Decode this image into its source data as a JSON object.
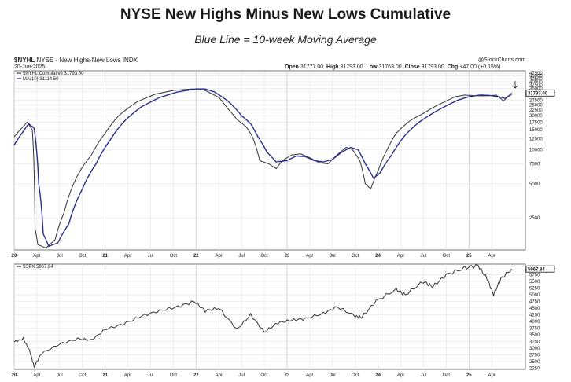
{
  "title": "NYSE New Highs Minus New Lows Cumulative",
  "subtitle": "Blue Line = 10-week Moving Average",
  "header": {
    "symbol": "$NYHL",
    "description": "NYSE - New Highs-New Lows INDX",
    "date": "20-Jun-2025",
    "watermark": "@StockCharts.com",
    "ohlc": [
      {
        "label": "Open",
        "value": "31777.00"
      },
      {
        "label": "High",
        "value": "31793.00"
      },
      {
        "label": "Low",
        "value": "31763.00"
      },
      {
        "label": "Close",
        "value": "31793.00"
      },
      {
        "label": "Chg",
        "value": "+47.00 (+0.15%)"
      }
    ]
  },
  "colors": {
    "price": "#333333",
    "ma": "#2a2f8c",
    "grid": "#e3e3e3",
    "arrow": "#1a1a1a"
  },
  "chart_data": [
    {
      "type": "line",
      "panel": "upper",
      "legend": {
        "placement": "top-left"
      },
      "series": [
        {
          "name": "$NYHL Cumulative 31793.00",
          "color": "#333333",
          "values": [
            [
              2020.0,
              13000
            ],
            [
              2020.1,
              16000
            ],
            [
              2020.14,
              17500
            ],
            [
              2020.2,
              15000
            ],
            [
              2020.23,
              2000
            ],
            [
              2020.26,
              1450
            ],
            [
              2020.35,
              1350
            ],
            [
              2020.45,
              1600
            ],
            [
              2020.55,
              2800
            ],
            [
              2020.7,
              6000
            ],
            [
              2020.85,
              9000
            ],
            [
              2021.0,
              14000
            ],
            [
              2021.15,
              20000
            ],
            [
              2021.35,
              26500
            ],
            [
              2021.55,
              31000
            ],
            [
              2021.75,
              33500
            ],
            [
              2021.95,
              34500
            ],
            [
              2022.02,
              34500
            ],
            [
              2022.1,
              33500
            ],
            [
              2022.25,
              29000
            ],
            [
              2022.35,
              23000
            ],
            [
              2022.45,
              18500
            ],
            [
              2022.55,
              16000
            ],
            [
              2022.62,
              13000
            ],
            [
              2022.7,
              8000
            ],
            [
              2022.8,
              7500
            ],
            [
              2022.88,
              6800
            ],
            [
              2022.95,
              8000
            ],
            [
              2023.05,
              9000
            ],
            [
              2023.15,
              9200
            ],
            [
              2023.25,
              8500
            ],
            [
              2023.35,
              7700
            ],
            [
              2023.45,
              7500
            ],
            [
              2023.55,
              9000
            ],
            [
              2023.65,
              10500
            ],
            [
              2023.72,
              10000
            ],
            [
              2023.8,
              8000
            ],
            [
              2023.86,
              5000
            ],
            [
              2023.92,
              4500
            ],
            [
              2024.0,
              6500
            ],
            [
              2024.1,
              10000
            ],
            [
              2024.2,
              14000
            ],
            [
              2024.35,
              18000
            ],
            [
              2024.5,
              21000
            ],
            [
              2024.62,
              24000
            ],
            [
              2024.75,
              27000
            ],
            [
              2024.85,
              29500
            ],
            [
              2024.95,
              30500
            ],
            [
              2025.1,
              30000
            ],
            [
              2025.2,
              30000
            ],
            [
              2025.3,
              30500
            ],
            [
              2025.38,
              27000
            ],
            [
              2025.47,
              31793
            ]
          ]
        },
        {
          "name": "MA(10) 31114.50",
          "color": "#2a2f8c",
          "values": [
            [
              2020.0,
              11000
            ],
            [
              2020.1,
              14500
            ],
            [
              2020.16,
              17000
            ],
            [
              2020.22,
              15500
            ],
            [
              2020.27,
              5000
            ],
            [
              2020.32,
              1800
            ],
            [
              2020.38,
              1400
            ],
            [
              2020.48,
              1500
            ],
            [
              2020.6,
              2200
            ],
            [
              2020.75,
              4500
            ],
            [
              2020.9,
              7500
            ],
            [
              2021.05,
              12000
            ],
            [
              2021.2,
              17500
            ],
            [
              2021.4,
              24000
            ],
            [
              2021.6,
              29000
            ],
            [
              2021.8,
              32500
            ],
            [
              2022.0,
              34500
            ],
            [
              2022.1,
              34500
            ],
            [
              2022.2,
              32500
            ],
            [
              2022.35,
              27000
            ],
            [
              2022.5,
              20000
            ],
            [
              2022.6,
              17000
            ],
            [
              2022.68,
              13000
            ],
            [
              2022.78,
              9500
            ],
            [
              2022.88,
              7800
            ],
            [
              2023.0,
              8000
            ],
            [
              2023.1,
              8800
            ],
            [
              2023.2,
              8700
            ],
            [
              2023.3,
              8000
            ],
            [
              2023.4,
              7800
            ],
            [
              2023.5,
              8200
            ],
            [
              2023.6,
              9500
            ],
            [
              2023.7,
              10500
            ],
            [
              2023.78,
              10000
            ],
            [
              2023.86,
              7500
            ],
            [
              2023.95,
              5600
            ],
            [
              2024.02,
              6200
            ],
            [
              2024.15,
              9000
            ],
            [
              2024.3,
              13500
            ],
            [
              2024.45,
              17500
            ],
            [
              2024.6,
              21000
            ],
            [
              2024.75,
              24500
            ],
            [
              2024.88,
              27500
            ],
            [
              2025.0,
              29500
            ],
            [
              2025.12,
              30500
            ],
            [
              2025.22,
              30300
            ],
            [
              2025.32,
              29500
            ],
            [
              2025.4,
              28500
            ],
            [
              2025.47,
              31114.5
            ]
          ]
        }
      ],
      "y_ticks": [
        2500,
        5000,
        7500,
        10000,
        12500,
        15000,
        17500,
        20000,
        22500,
        25000,
        27500,
        32500,
        35000,
        37500,
        40000,
        42500,
        45000,
        47500
      ],
      "last_value_label": "31793.00",
      "x_ticks": [
        "20",
        "Apr",
        "Jul",
        "Oct",
        "21",
        "Apr",
        "Jul",
        "Oct",
        "22",
        "Apr",
        "Jul",
        "Oct",
        "23",
        "Apr",
        "Jul",
        "Oct",
        "24",
        "Apr",
        "Jul",
        "Oct",
        "25",
        "Apr"
      ]
    },
    {
      "type": "line",
      "panel": "lower",
      "legend": {
        "placement": "top-left"
      },
      "series": [
        {
          "name": "$SPX 5967.84",
          "color": "#333333",
          "values": [
            [
              2020.0,
              3230
            ],
            [
              2020.1,
              3350
            ],
            [
              2020.17,
              2900
            ],
            [
              2020.22,
              2300
            ],
            [
              2020.3,
              2800
            ],
            [
              2020.5,
              3150
            ],
            [
              2020.7,
              3350
            ],
            [
              2020.85,
              3300
            ],
            [
              2021.0,
              3700
            ],
            [
              2021.2,
              3900
            ],
            [
              2021.4,
              4200
            ],
            [
              2021.6,
              4400
            ],
            [
              2021.8,
              4550
            ],
            [
              2021.98,
              4750
            ],
            [
              2022.1,
              4400
            ],
            [
              2022.25,
              4500
            ],
            [
              2022.45,
              3700
            ],
            [
              2022.6,
              4250
            ],
            [
              2022.75,
              3600
            ],
            [
              2022.9,
              3950
            ],
            [
              2023.05,
              4050
            ],
            [
              2023.2,
              4100
            ],
            [
              2023.4,
              4300
            ],
            [
              2023.55,
              4550
            ],
            [
              2023.75,
              4200
            ],
            [
              2023.82,
              4150
            ],
            [
              2023.98,
              4770
            ],
            [
              2024.2,
              5200
            ],
            [
              2024.3,
              5000
            ],
            [
              2024.5,
              5500
            ],
            [
              2024.6,
              5300
            ],
            [
              2024.75,
              5750
            ],
            [
              2024.95,
              6000
            ],
            [
              2025.1,
              6100
            ],
            [
              2025.2,
              5600
            ],
            [
              2025.27,
              5000
            ],
            [
              2025.35,
              5600
            ],
            [
              2025.47,
              5967.84
            ]
          ]
        }
      ],
      "y_ticks": [
        2250,
        2500,
        2750,
        3000,
        3250,
        3500,
        3750,
        4000,
        4250,
        4500,
        4750,
        5000,
        5250,
        5500,
        5750
      ],
      "last_value_label": "5967.84",
      "x_ticks": [
        "20",
        "Apr",
        "Jul",
        "Oct",
        "21",
        "Apr",
        "Jul",
        "Oct",
        "22",
        "Apr",
        "Jul",
        "Oct",
        "23",
        "Apr",
        "Jul",
        "Oct",
        "24",
        "Apr",
        "Jul",
        "Oct",
        "25",
        "Apr"
      ]
    }
  ]
}
